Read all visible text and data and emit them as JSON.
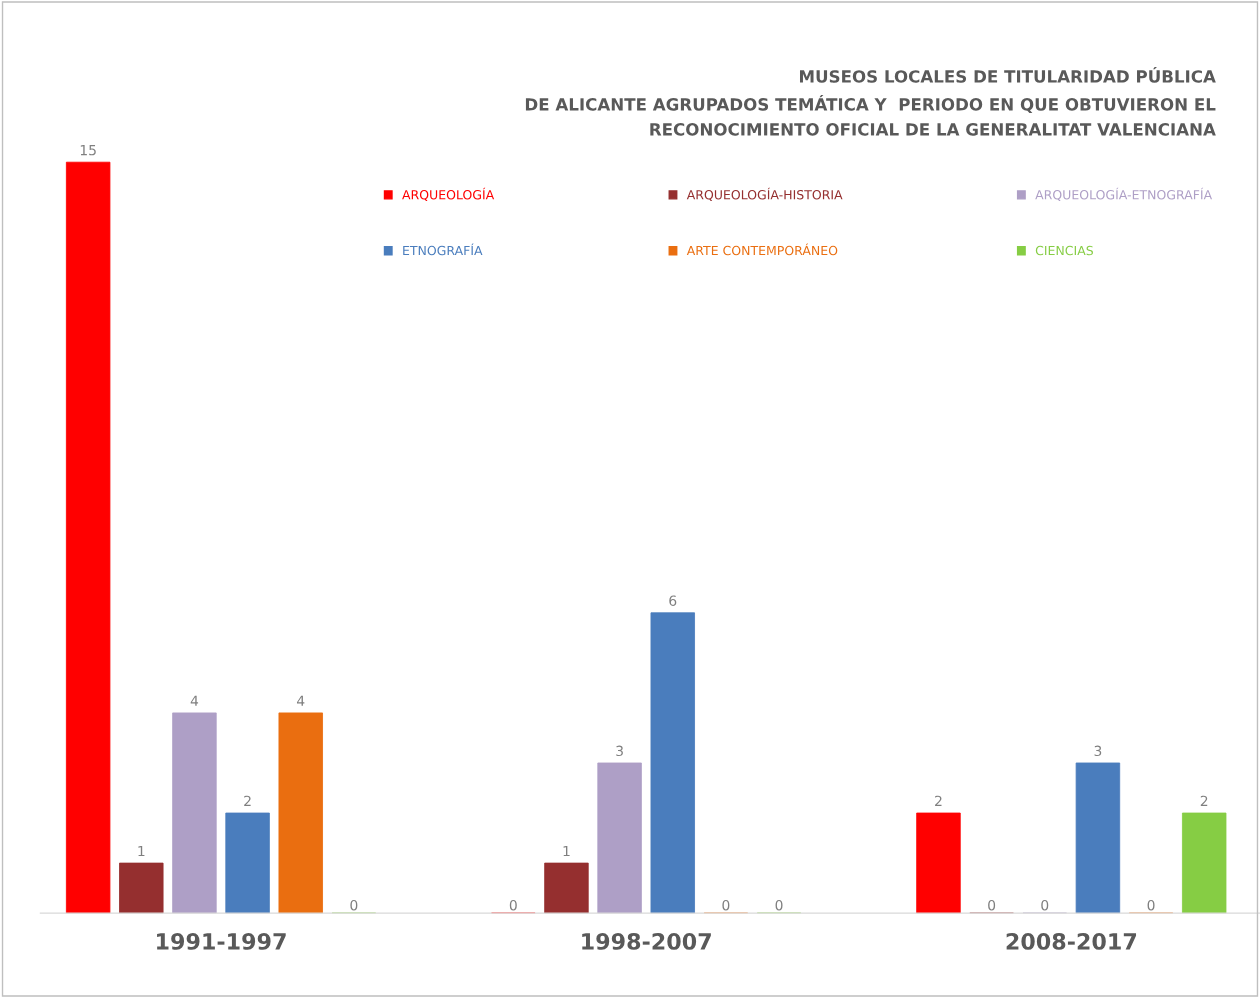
{
  "chart_data": {
    "type": "bar",
    "title": "MUSEOS LOCALES DE TITULARIDAD PÚBLICA\nDE ALICANTE AGRUPADOS TEMÁTICA Y  PERIODO EN QUE OBTUVIERON EL\nRECONOCIMIENTO OFICIAL DE LA GENERALITAT VALENCIANA",
    "categories": [
      "1991-1997",
      "1998-2007",
      "2008-2017"
    ],
    "series": [
      {
        "name": "ARQUEOLOGÍA",
        "color": "#ff0000",
        "values": [
          15,
          0,
          2
        ]
      },
      {
        "name": "ARQUEOLOGÍA-HISTORIA",
        "color": "#952f2f",
        "values": [
          1,
          1,
          0
        ]
      },
      {
        "name": "ARQUEOLOGÍA-ETNOGRAFÍA",
        "color": "#ae9fc6",
        "values": [
          4,
          3,
          0
        ]
      },
      {
        "name": "ETNOGRAFÍA",
        "color": "#4a7dbd",
        "values": [
          2,
          6,
          3
        ]
      },
      {
        "name": "ARTE CONTEMPORÁNEO",
        "color": "#ea6e10",
        "values": [
          4,
          0,
          0
        ]
      },
      {
        "name": "CIENCIAS",
        "color": "#86cd44",
        "values": [
          0,
          0,
          2
        ]
      }
    ],
    "data_labels": true,
    "legend": "top right",
    "grid": false,
    "tick_labels": "x"
  }
}
